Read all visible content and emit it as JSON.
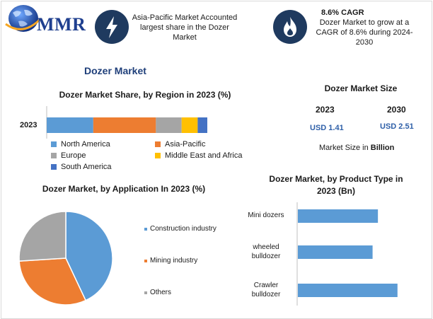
{
  "header": {
    "logo_text": "MMR",
    "info1": {
      "icon": "lightning-bolt-icon",
      "lines": [
        "Asia-Pacific Market Accounted",
        "largest share in the Dozer",
        "Market"
      ]
    },
    "info2": {
      "icon": "flame-icon",
      "title": "8.6% CAGR",
      "lines": [
        "Dozer Market to grow at a",
        "CAGR of 8.6% during 2024-",
        "2030"
      ]
    }
  },
  "page_title": "Dozer Market",
  "market_size": {
    "title": "Dozer Market Size",
    "year1": "2023",
    "value1": "USD 1.41",
    "year2": "2030",
    "value2": "USD 2.51",
    "caption_prefix": "Market Size in ",
    "caption_unit": "Billion"
  },
  "colors": {
    "north_america": "#5b9bd5",
    "asia_pacific": "#ed7d31",
    "europe": "#a5a5a5",
    "middle_east_africa": "#ffc000",
    "south_america": "#4472c4",
    "bar": "#5b9bd5",
    "icon_bg": "#1f3a5f"
  },
  "chart_data": [
    {
      "type": "bar",
      "orientation": "horizontal-stacked",
      "title": "Dozer Market Share, by Region in 2023 (%)",
      "categories": [
        "2023"
      ],
      "series": [
        {
          "name": "North America",
          "values": [
            29
          ]
        },
        {
          "name": "Asia-Pacific",
          "values": [
            39
          ]
        },
        {
          "name": "Europe",
          "values": [
            16
          ]
        },
        {
          "name": "Middle East and Africa",
          "values": [
            10
          ]
        },
        {
          "name": "South America",
          "values": [
            6
          ]
        }
      ],
      "legend": "bottom"
    },
    {
      "type": "pie",
      "title": "Dozer Market, by Application In 2023 (%)",
      "labels": [
        "Construction industry",
        "Mining industry",
        "Others"
      ],
      "values": [
        43,
        31,
        26
      ],
      "colors": [
        "#5b9bd5",
        "#ed7d31",
        "#a5a5a5"
      ],
      "legend": "right"
    },
    {
      "type": "bar",
      "orientation": "horizontal",
      "title": "Dozer Market, by Product Type in 2023 (Bn)",
      "categories": [
        [
          "Mini dozers"
        ],
        [
          "wheeled",
          "bulldozer"
        ],
        [
          "Crawler",
          "bulldozer"
        ]
      ],
      "values": [
        0.45,
        0.42,
        0.56
      ],
      "xlim": [
        0,
        0.7
      ]
    }
  ]
}
